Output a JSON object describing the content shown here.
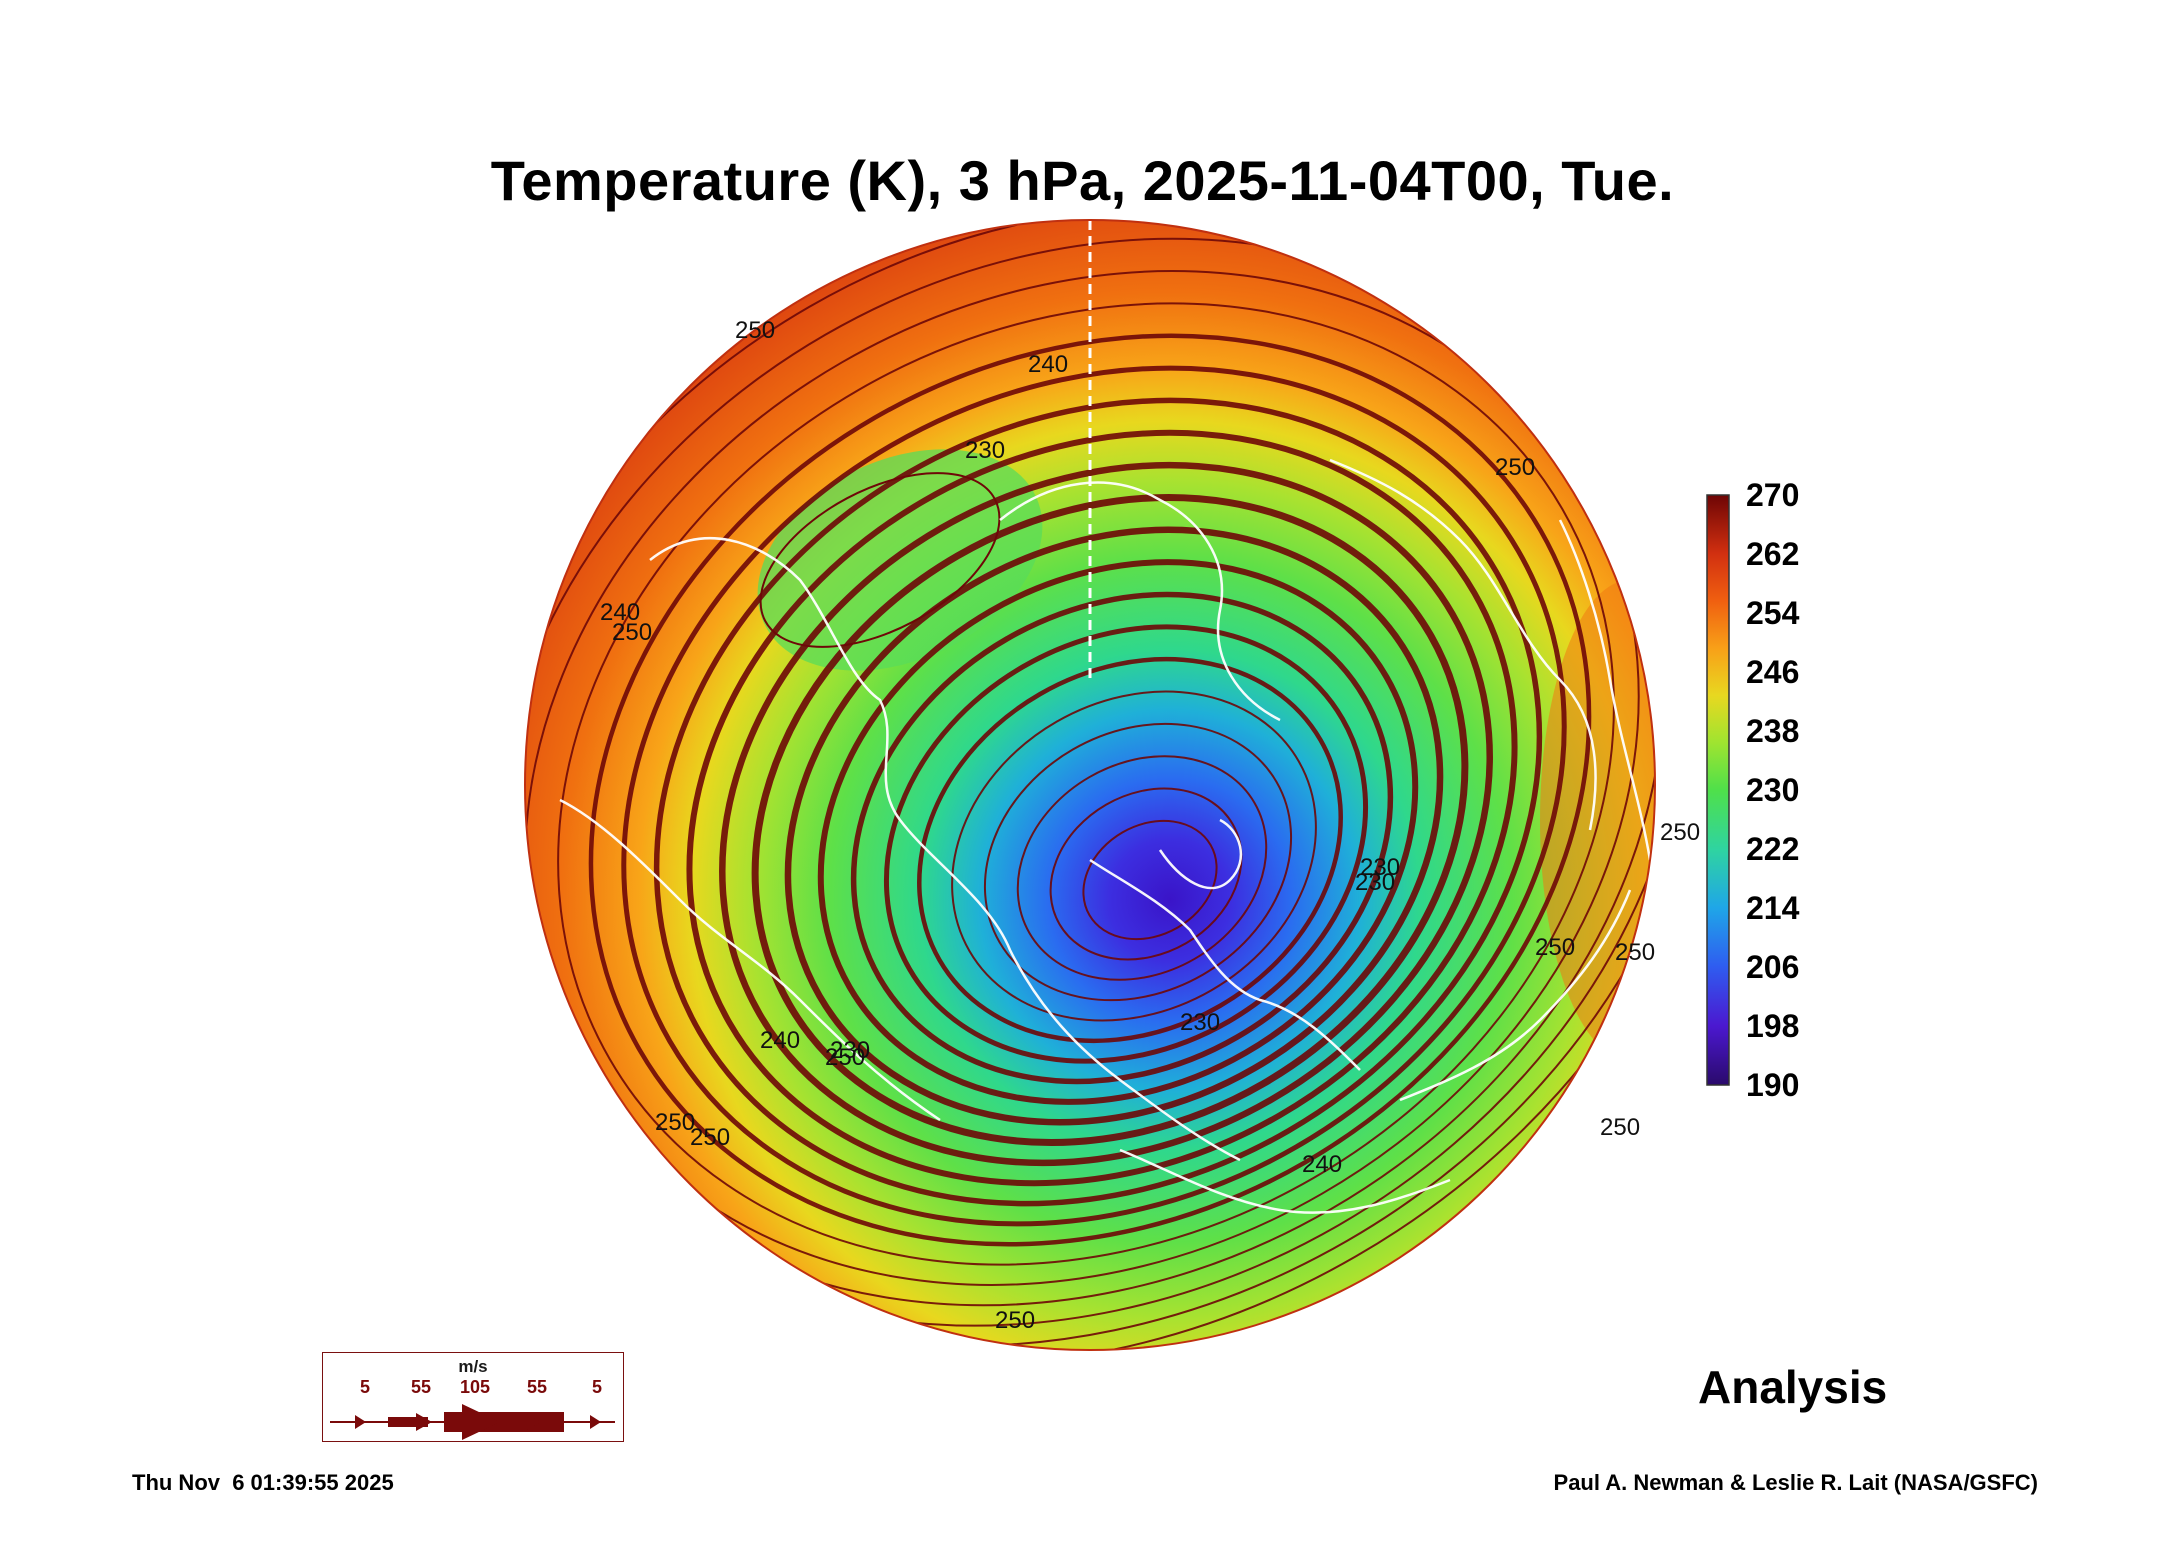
{
  "title": "Temperature (K), 3 hPa, 2025-11-04T00, Tue.",
  "colorbar": {
    "ticks": [
      "270",
      "262",
      "254",
      "246",
      "238",
      "230",
      "222",
      "214",
      "206",
      "198",
      "190"
    ],
    "colors": [
      "#2a0a6b",
      "#4b18d0",
      "#2f5cf0",
      "#1fa6e8",
      "#2fd4a0",
      "#4fe04a",
      "#9fe430",
      "#e8d820",
      "#f8a018",
      "#f06010",
      "#d23010",
      "#6e0505"
    ]
  },
  "legend": {
    "unit": "m/s",
    "speeds": [
      "5",
      "55",
      "105",
      "55",
      "5"
    ]
  },
  "analysis_label": "Analysis",
  "footer": {
    "timestamp": "Thu Nov  6 01:39:55 2025",
    "credit": "Paul A. Newman & Leslie R. Lait (NASA/GSFC)"
  },
  "contour_labels": [
    "250",
    "240",
    "230",
    "250",
    "240",
    "250",
    "230",
    "240",
    "250",
    "230",
    "230",
    "250",
    "250",
    "250",
    "240",
    "250",
    "250",
    "250",
    "230",
    "250"
  ]
}
